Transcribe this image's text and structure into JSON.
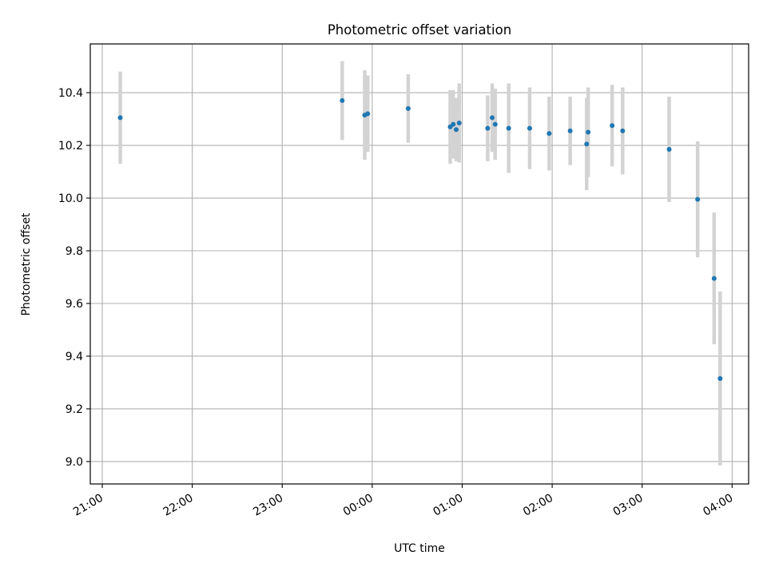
{
  "chart_data": {
    "type": "scatter",
    "title": "Photometric offset variation",
    "xlabel": "UTC time",
    "ylabel": "Photometric offset",
    "x_tick_labels": [
      "21:00",
      "22:00",
      "23:00",
      "00:00",
      "01:00",
      "02:00",
      "03:00",
      "04:00"
    ],
    "y_tick_labels": [
      "9.0",
      "9.2",
      "9.4",
      "9.6",
      "9.8",
      "10.0",
      "10.2",
      "10.4"
    ],
    "y_ticks": [
      9.0,
      9.2,
      9.4,
      9.6,
      9.8,
      10.0,
      10.2,
      10.4
    ],
    "xlim": [
      "20:52",
      "04:11"
    ],
    "ylim": [
      8.915,
      10.585
    ],
    "grid": true,
    "colors": {
      "point": "#1f77b4",
      "errorbar": "#d3d3d3",
      "grid": "#b0b0b0"
    },
    "series": [
      {
        "x": [
          "21:12",
          "23:40",
          "23:55",
          "23:57",
          "00:24",
          "00:52",
          "00:54",
          "00:56",
          "00:58",
          "01:17",
          "01:20",
          "01:22",
          "01:31",
          "01:45",
          "01:58",
          "02:12",
          "02:23",
          "02:24",
          "02:40",
          "02:47",
          "03:18",
          "03:37",
          "03:48",
          "03:52"
        ],
        "y": [
          10.305,
          10.37,
          10.315,
          10.32,
          10.34,
          10.27,
          10.28,
          10.26,
          10.285,
          10.265,
          10.305,
          10.28,
          10.265,
          10.265,
          10.245,
          10.255,
          10.205,
          10.25,
          10.275,
          10.255,
          10.185,
          9.995,
          9.695,
          9.315
        ],
        "yerr": [
          0.175,
          0.15,
          0.17,
          0.145,
          0.13,
          0.14,
          0.13,
          0.12,
          0.15,
          0.125,
          0.13,
          0.135,
          0.17,
          0.155,
          0.14,
          0.13,
          0.175,
          0.17,
          0.155,
          0.165,
          0.2,
          0.22,
          0.25,
          0.33
        ]
      }
    ]
  }
}
